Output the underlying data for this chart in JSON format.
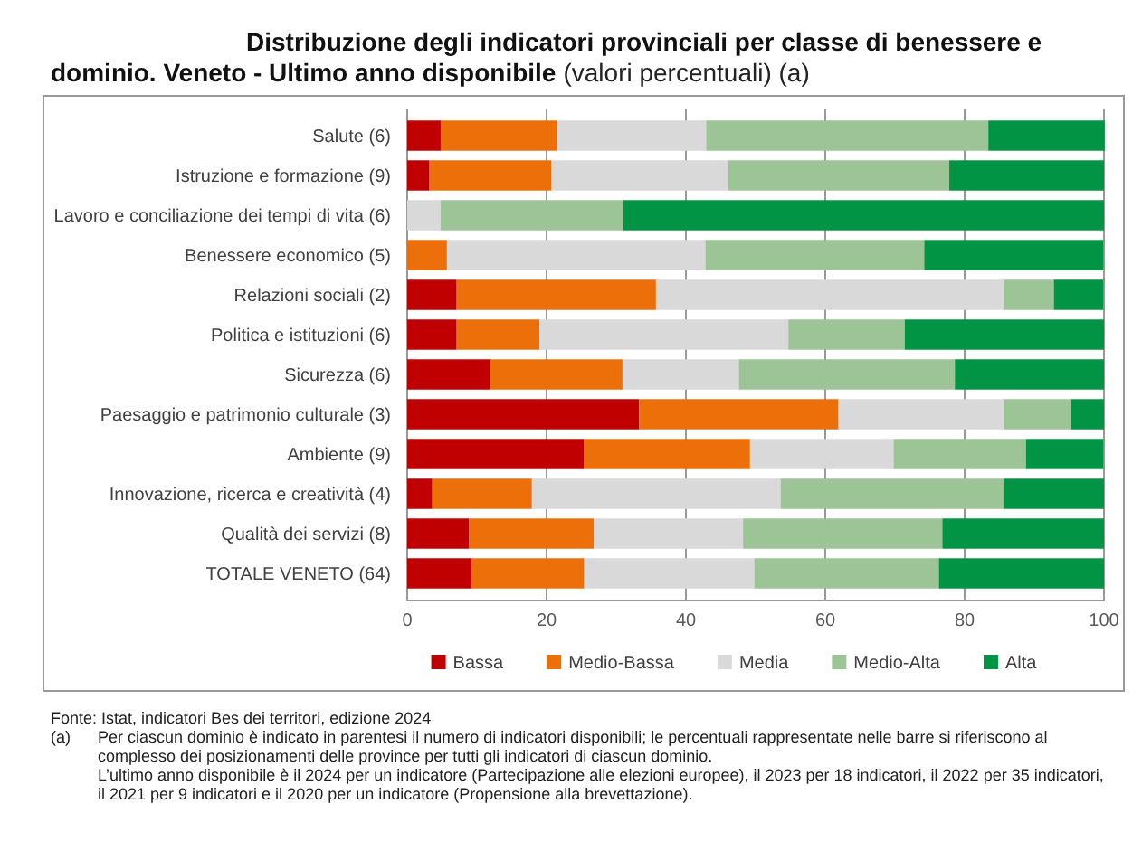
{
  "chart_data": {
    "type": "bar",
    "orientation": "horizontal",
    "stacked": true,
    "title": "Distribuzione degli indicatori provinciali per classe di benessere e dominio. Veneto - Ultimo anno disponibile",
    "subtitle": "(valori percentuali) (a)",
    "categories": [
      "Salute (6)",
      "Istruzione e formazione (9)",
      "Lavoro e conciliazione dei tempi di vita (6)",
      "Benessere economico (5)",
      "Relazioni sociali (2)",
      "Politica e istituzioni (6)",
      "Sicurezza (6)",
      "Paesaggio e patrimonio culturale (3)",
      "Ambiente (9)",
      "Innovazione, ricerca e creatività (4)",
      "Qualità dei servizi (8)",
      "TOTALE VENETO (64)"
    ],
    "series": [
      {
        "name": "Bassa",
        "color": "#c00000",
        "values": [
          4.8,
          3.2,
          0,
          0,
          7.1,
          7.1,
          11.9,
          33.3,
          25.4,
          3.6,
          8.9,
          9.3
        ]
      },
      {
        "name": "Medio-Bassa",
        "color": "#ec6f0a",
        "values": [
          16.7,
          17.5,
          0,
          5.7,
          28.6,
          11.9,
          19.0,
          28.6,
          23.8,
          14.3,
          17.9,
          16.1
        ]
      },
      {
        "name": "Media",
        "color": "#d9d9d9",
        "values": [
          21.4,
          25.4,
          4.8,
          37.1,
          50.0,
          35.7,
          16.7,
          23.8,
          20.6,
          35.7,
          21.4,
          24.4
        ]
      },
      {
        "name": "Medio-Alta",
        "color": "#9cc496",
        "values": [
          40.5,
          31.7,
          26.2,
          31.4,
          7.1,
          16.7,
          31.0,
          9.5,
          19.0,
          32.1,
          28.6,
          26.5
        ]
      },
      {
        "name": "Alta",
        "color": "#009444",
        "values": [
          16.7,
          22.2,
          69.0,
          25.7,
          7.1,
          28.6,
          21.4,
          4.8,
          11.1,
          14.3,
          23.2,
          23.7
        ]
      }
    ],
    "xlim": [
      0,
      100
    ],
    "xticks": [
      0,
      20,
      40,
      60,
      80,
      100
    ],
    "grid": "x",
    "legend": "bottom",
    "annotations": [
      "Fonte: Istat, indicatori Bes dei territori, edizione 2024",
      "(a) Per ciascun dominio è indicato in parentesi il numero di indicatori disponibili; le percentuali rappresentate nelle barre si riferiscono al complesso dei posizionamenti delle province per tutti gli indicatori di ciascun dominio.",
      "L’ultimo anno disponibile è il 2024 per un indicatore (Partecipazione alle elezioni europee), il 2023 per 18 indicatori, il 2022 per 35 indicatori, il 2021 per 9 indicatori e il 2020 per un indicatore (Propensione alla brevettazione)."
    ]
  }
}
